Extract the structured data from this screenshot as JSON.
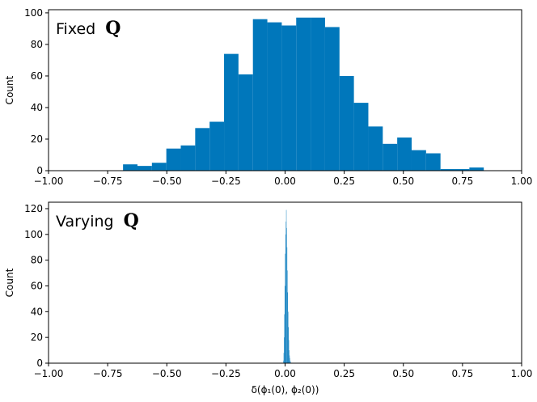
{
  "chart_data": [
    {
      "type": "bar",
      "panel_label": "Fixed",
      "panel_label_bold": "Q",
      "xlabel": "",
      "ylabel": "Count",
      "xlim": [
        -1.0,
        1.0
      ],
      "ylim": [
        0,
        102
      ],
      "xticks": [
        "−1.00",
        "−0.75",
        "−0.50",
        "−0.25",
        "0.00",
        "0.25",
        "0.50",
        "0.75",
        "1.00"
      ],
      "xtick_values": [
        -1.0,
        -0.75,
        -0.5,
        -0.25,
        0.0,
        0.25,
        0.5,
        0.75,
        1.0
      ],
      "yticks": [
        "0",
        "20",
        "40",
        "60",
        "80",
        "100"
      ],
      "ytick_values": [
        0,
        20,
        40,
        60,
        80,
        100
      ],
      "color": "#0077bb",
      "bins": [
        {
          "x0": -0.685,
          "x1": -0.624,
          "count": 4
        },
        {
          "x0": -0.624,
          "x1": -0.563,
          "count": 3
        },
        {
          "x0": -0.563,
          "x1": -0.502,
          "count": 5
        },
        {
          "x0": -0.502,
          "x1": -0.441,
          "count": 14
        },
        {
          "x0": -0.441,
          "x1": -0.38,
          "count": 16
        },
        {
          "x0": -0.38,
          "x1": -0.319,
          "count": 27
        },
        {
          "x0": -0.319,
          "x1": -0.258,
          "count": 31
        },
        {
          "x0": -0.258,
          "x1": -0.197,
          "count": 74
        },
        {
          "x0": -0.197,
          "x1": -0.136,
          "count": 61
        },
        {
          "x0": -0.136,
          "x1": -0.075,
          "count": 96
        },
        {
          "x0": -0.075,
          "x1": -0.014,
          "count": 94
        },
        {
          "x0": -0.014,
          "x1": 0.047,
          "count": 92
        },
        {
          "x0": 0.047,
          "x1": 0.108,
          "count": 97
        },
        {
          "x0": 0.108,
          "x1": 0.169,
          "count": 97
        },
        {
          "x0": 0.169,
          "x1": 0.23,
          "count": 91
        },
        {
          "x0": 0.23,
          "x1": 0.291,
          "count": 60
        },
        {
          "x0": 0.291,
          "x1": 0.352,
          "count": 43
        },
        {
          "x0": 0.352,
          "x1": 0.413,
          "count": 28
        },
        {
          "x0": 0.413,
          "x1": 0.474,
          "count": 17
        },
        {
          "x0": 0.474,
          "x1": 0.535,
          "count": 21
        },
        {
          "x0": 0.535,
          "x1": 0.596,
          "count": 13
        },
        {
          "x0": 0.596,
          "x1": 0.657,
          "count": 11
        },
        {
          "x0": 0.657,
          "x1": 0.718,
          "count": 1
        },
        {
          "x0": 0.718,
          "x1": 0.779,
          "count": 1
        },
        {
          "x0": 0.779,
          "x1": 0.84,
          "count": 2
        }
      ]
    },
    {
      "type": "bar",
      "panel_label": "Varying",
      "panel_label_bold": "Q",
      "xlabel": "δ(ϕ₁(0), ϕ₂(0))",
      "ylabel": "Count",
      "xlim": [
        -1.0,
        1.0
      ],
      "ylim": [
        0,
        125
      ],
      "xticks": [
        "−1.00",
        "−0.75",
        "−0.50",
        "−0.25",
        "0.00",
        "0.25",
        "0.50",
        "0.75",
        "1.00"
      ],
      "xtick_values": [
        -1.0,
        -0.75,
        -0.5,
        -0.25,
        0.0,
        0.25,
        0.5,
        0.75,
        1.0
      ],
      "yticks": [
        "0",
        "20",
        "40",
        "60",
        "80",
        "100",
        "120"
      ],
      "ytick_values": [
        0,
        20,
        40,
        60,
        80,
        100,
        120
      ],
      "color": "#0077bb",
      "bins": [
        {
          "x0": -0.0075,
          "x1": -0.006,
          "count": 2
        },
        {
          "x0": -0.006,
          "x1": -0.0045,
          "count": 8
        },
        {
          "x0": -0.0045,
          "x1": -0.003,
          "count": 20
        },
        {
          "x0": -0.003,
          "x1": -0.0015,
          "count": 38
        },
        {
          "x0": -0.0015,
          "x1": 0.0,
          "count": 60
        },
        {
          "x0": 0.0,
          "x1": 0.0015,
          "count": 85
        },
        {
          "x0": 0.0015,
          "x1": 0.003,
          "count": 100
        },
        {
          "x0": 0.003,
          "x1": 0.0045,
          "count": 110
        },
        {
          "x0": 0.0045,
          "x1": 0.006,
          "count": 119
        },
        {
          "x0": 0.006,
          "x1": 0.0075,
          "count": 105
        },
        {
          "x0": 0.0075,
          "x1": 0.009,
          "count": 90
        },
        {
          "x0": 0.009,
          "x1": 0.0105,
          "count": 72
        },
        {
          "x0": 0.0105,
          "x1": 0.012,
          "count": 55
        },
        {
          "x0": 0.012,
          "x1": 0.0135,
          "count": 40
        },
        {
          "x0": 0.0135,
          "x1": 0.015,
          "count": 28
        },
        {
          "x0": 0.015,
          "x1": 0.0165,
          "count": 18
        },
        {
          "x0": 0.0165,
          "x1": 0.018,
          "count": 10
        },
        {
          "x0": 0.018,
          "x1": 0.0195,
          "count": 6
        },
        {
          "x0": 0.0195,
          "x1": 0.021,
          "count": 4
        },
        {
          "x0": 0.021,
          "x1": 0.0225,
          "count": 2
        },
        {
          "x0": 0.0225,
          "x1": 0.024,
          "count": 1
        }
      ]
    }
  ]
}
